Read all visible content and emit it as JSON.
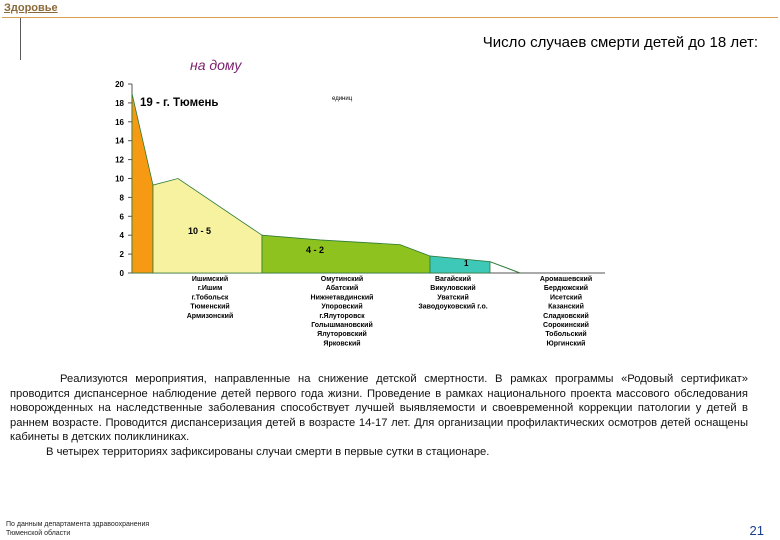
{
  "header": {
    "section_link": "Здоровье",
    "title": "Число случаев смерти детей до 18 лет:",
    "subtitle": "на дому"
  },
  "chart_data": {
    "type": "area",
    "unit_label": "единиц",
    "ylim": [
      0,
      20
    ],
    "yticks": [
      0,
      2,
      4,
      6,
      8,
      10,
      12,
      14,
      16,
      18,
      20
    ],
    "grid": false,
    "colors": {
      "tyumen": "#f59a12",
      "group_10_5": "#f7f2a0",
      "group_4_2": "#8ec21e",
      "group_1": "#3ec8b8",
      "outline": "#2d7a3a"
    },
    "group_labels": [
      "19 - г. Тюмень",
      "10 - 5",
      "4 - 2",
      "1"
    ],
    "groups": [
      {
        "label": "19 - г. Тюмень",
        "values": [
          19
        ]
      },
      {
        "label": "10 - 5",
        "values": [
          10,
          10,
          5
        ]
      },
      {
        "label": "4 - 2",
        "values": [
          4,
          3.5,
          3,
          2
        ]
      },
      {
        "label": "1",
        "values": [
          1
        ]
      },
      {
        "label": "",
        "values": [
          0
        ]
      }
    ],
    "territory_columns": [
      [
        "Ишимский",
        "г.Ишим",
        "г.Тобольск",
        "Тюменский",
        "Армизонский"
      ],
      [
        "Омутинский",
        "Абатский",
        "Нижнетавдинский",
        "Упоровский",
        "г.Ялуторовск",
        "Голышмановский",
        "Ялуторовский",
        "Ярковский"
      ],
      [
        "Вагайский",
        "Викуловский",
        "Уватский",
        "Заводоуковский г.о."
      ],
      [
        "Аромашевский",
        "Бердюжский",
        "Исетский",
        "Казанский",
        "Сладковский",
        "Сорокинский",
        "Тобольский",
        "Юргинский"
      ]
    ]
  },
  "body": {
    "paragraph1": "Реализуются мероприятия, направленные на снижение детской смертности. В рамках программы «Родовый сертификат» проводится диспансерное наблюдение детей первого года жизни. Проведение в рамках национального проекта массового обследования новорожденных на наследственные заболевания способствует лучшей выявляемости и своевременной коррекции патологии у детей в раннем возрасте. Проводится диспансеризация детей в возрасте 14-17 лет. Для организации профилактических осмотров детей оснащены кабинеты в детских поликлиниках.",
    "paragraph2": "В четырех территориях зафиксированы случаи смерти в первые сутки в стационаре."
  },
  "footer": {
    "source_line1": "По данным департамента здравоохранения",
    "source_line2": "Тюменской области",
    "page_number": "21"
  }
}
